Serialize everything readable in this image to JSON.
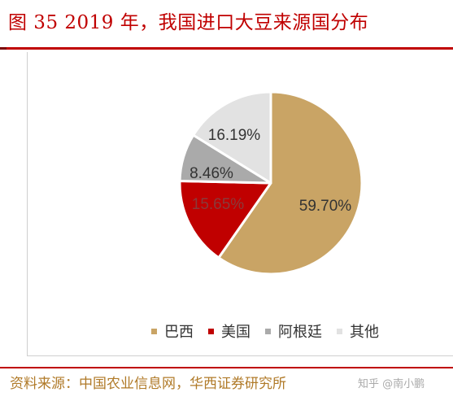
{
  "header": {
    "title": "图 35   2019 年，我国进口大豆来源国分布"
  },
  "footer": {
    "source": "资料来源：中国农业信息网，华西证券研究所",
    "watermark": "知乎 @南小鹏"
  },
  "chart_data": {
    "type": "pie",
    "title": "",
    "labels": [
      "巴西",
      "美国",
      "阿根廷",
      "其他"
    ],
    "values": [
      59.7,
      15.65,
      8.46,
      16.19
    ],
    "value_labels": [
      "59.70%",
      "15.65%",
      "8.46%",
      "16.19%"
    ],
    "colors": [
      "#c9a465",
      "#c00000",
      "#aaaaaa",
      "#e2e2e2"
    ],
    "label_colors": [
      "#333333",
      "#8a3a3a",
      "#333333",
      "#333333"
    ],
    "start_direction": "12 o'clock, clockwise",
    "legend_position": "bottom"
  }
}
